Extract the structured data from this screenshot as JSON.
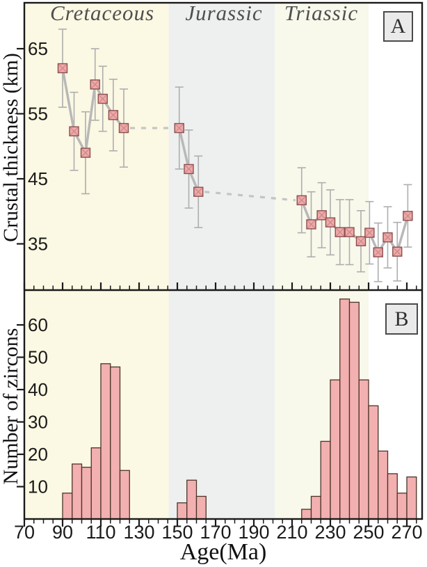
{
  "figure": {
    "period_labels": [
      "Cretaceous",
      "Jurassic",
      "Triassic"
    ],
    "panel_a_letter": "A",
    "panel_b_letter": "B",
    "xlabel": "Age(Ma)",
    "ylabel_a": "Crustal thickness (km)",
    "ylabel_b": "Number of zircons"
  },
  "colors": {
    "plot_border": "#1a1a1a",
    "tick_text": "#1a1a1a",
    "period_text": "#4f4f4f",
    "marker_fill": "#f0a8a8",
    "marker_stroke": "#8a4f4f",
    "marker_cross": "#ca8888",
    "error_bar": "#aeaeae",
    "segment_line": "#b8b8b8",
    "dashed_line": "#c4c4c4",
    "bar_fill": "#f3b0b0",
    "bar_stroke": "#4a3426",
    "cretaceous_bg": "#fbf8e3",
    "jurassic_bg": "#edf0ef",
    "triassic_bg": "#f8f8eb",
    "permian_bg": "#ffffff"
  },
  "chart_data": [
    {
      "type": "scatter",
      "panel": "A",
      "ylabel": "Crustal thickness (km)",
      "xlabel": "Age(Ma)",
      "xlim": [
        70,
        278
      ],
      "ylim": [
        28,
        72
      ],
      "xticks": [
        70,
        90,
        110,
        130,
        150,
        170,
        190,
        210,
        230,
        250,
        270
      ],
      "yticks": [
        35,
        45,
        55,
        65
      ],
      "x_minor_step": 5,
      "grid": false,
      "legend": "none",
      "regions": [
        {
          "label": "Cretaceous",
          "from": 70,
          "to": 145.5,
          "color": "#fbf8e3"
        },
        {
          "label": "Jurassic",
          "from": 145.5,
          "to": 201,
          "color": "#edf0ef"
        },
        {
          "label": "Triassic",
          "from": 201,
          "to": 250,
          "color": "#f8f8eb"
        },
        {
          "label": "",
          "from": 250,
          "to": 278,
          "color": "#ffffff"
        }
      ],
      "series": [
        {
          "name": "Cretaceous segment",
          "x": [
            90,
            96,
            102,
            107,
            111,
            116.5,
            122
          ],
          "y": [
            62,
            52.3,
            49,
            59.5,
            57.3,
            54.8,
            52.8
          ],
          "yerr": [
            6,
            6,
            6.3,
            5.5,
            5,
            5.5,
            6
          ]
        },
        {
          "name": "Jurassic segment",
          "x": [
            151,
            156,
            161
          ],
          "y": [
            52.8,
            46.5,
            43
          ],
          "yerr": [
            6.3,
            6,
            5.5
          ]
        },
        {
          "name": "Triassic segment",
          "x": [
            215,
            220,
            225.5,
            230,
            235,
            240,
            246,
            250.5,
            255,
            260,
            265,
            270.5
          ],
          "y": [
            41.7,
            38,
            39.4,
            38.3,
            36.8,
            36.8,
            35.4,
            36.7,
            33.7,
            36,
            33.8,
            39.3
          ],
          "yerr": [
            5,
            5,
            5,
            5,
            5,
            5,
            4.7,
            4.8,
            4.5,
            4.7,
            4.5,
            4.8
          ]
        }
      ],
      "dashed_connectors": [
        {
          "x1": 122,
          "y1": 52.8,
          "x2": 151,
          "y2": 52.8
        },
        {
          "x1": 161,
          "y1": 43,
          "x2": 215,
          "y2": 41.7
        }
      ]
    },
    {
      "type": "bar",
      "panel": "B",
      "ylabel": "Number of zircons",
      "xlabel": "Age(Ma)",
      "xlim": [
        70,
        278
      ],
      "ylim": [
        0,
        70.7
      ],
      "xticks": [
        70,
        90,
        110,
        130,
        150,
        170,
        190,
        210,
        230,
        250,
        270
      ],
      "yticks": [
        10,
        20,
        30,
        40,
        50,
        60
      ],
      "x_minor_step": 5,
      "grid": false,
      "bin_width": 5,
      "bin_starts": [
        90,
        95,
        100,
        105,
        110,
        115,
        120,
        150,
        155,
        160,
        215,
        220,
        225,
        230,
        235,
        240,
        245,
        250,
        255,
        260,
        265,
        270
      ],
      "counts": [
        8,
        17,
        16,
        22,
        48,
        47,
        15,
        5,
        12,
        7,
        3,
        7,
        24,
        43,
        68,
        67,
        43,
        35,
        21,
        14,
        8,
        13
      ]
    }
  ]
}
